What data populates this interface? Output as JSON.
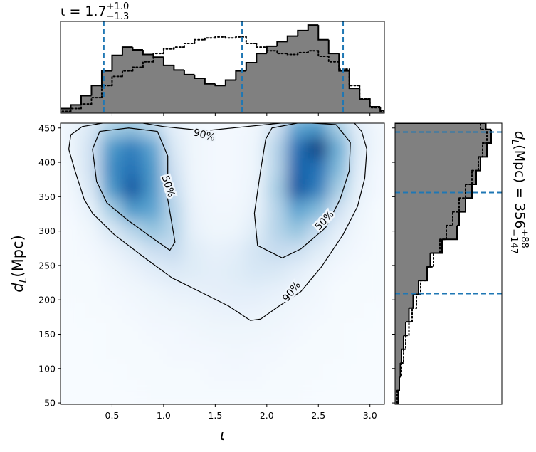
{
  "chart_data": [
    {
      "type": "histogram",
      "orientation": "vertical",
      "title": {
        "text": "ι = 1.7",
        "upper": "+1.0",
        "lower": "−1.3"
      },
      "bins": [
        0,
        0.1,
        0.2,
        0.3,
        0.4,
        0.5,
        0.6,
        0.7,
        0.8,
        0.9,
        1.0,
        1.1,
        1.2,
        1.3,
        1.4,
        1.5,
        1.6,
        1.7,
        1.8,
        1.9,
        2.0,
        2.1,
        2.2,
        2.3,
        2.4,
        2.5,
        2.6,
        2.7,
        2.8,
        2.9,
        3.0,
        3.1,
        3.14
      ],
      "series": [
        {
          "color": "#000000",
          "fill": "#808080",
          "linestyle": "solid",
          "values": [
            0.05,
            0.09,
            0.19,
            0.3,
            0.46,
            0.63,
            0.72,
            0.69,
            0.64,
            0.61,
            0.52,
            0.47,
            0.42,
            0.38,
            0.32,
            0.3,
            0.36,
            0.46,
            0.55,
            0.65,
            0.73,
            0.78,
            0.84,
            0.9,
            0.96,
            0.8,
            0.65,
            0.46,
            0.27,
            0.15,
            0.07,
            0.03
          ]
        },
        {
          "color": "#000000",
          "linestyle": "dotted",
          "values": [
            0.02,
            0.05,
            0.1,
            0.17,
            0.3,
            0.4,
            0.46,
            0.5,
            0.56,
            0.65,
            0.7,
            0.72,
            0.76,
            0.8,
            0.82,
            0.83,
            0.82,
            0.83,
            0.76,
            0.72,
            0.68,
            0.65,
            0.64,
            0.66,
            0.68,
            0.62,
            0.56,
            0.48,
            0.3,
            0.16,
            0.06,
            0.02
          ]
        }
      ],
      "quantiles": [
        0.42,
        1.76,
        2.74
      ],
      "quantile_color": "#1f77b4",
      "xlim": [
        0,
        3.14
      ],
      "xticks": [
        0.5,
        1,
        1.5,
        2,
        2.5,
        3
      ],
      "ylim": [
        0,
        1
      ]
    },
    {
      "type": "heatmap",
      "xlabel": "ι",
      "ylabel": {
        "symbol": "d",
        "symbol_sub": "L",
        "text": " (Mpc)"
      },
      "xlim": [
        0,
        3.14
      ],
      "xticks": [
        0.5,
        {
          "value": 1,
          "label": "1.0"
        },
        1.5,
        {
          "value": 2,
          "label": "2.0"
        },
        2.5,
        {
          "value": 3,
          "label": "3.0"
        }
      ],
      "ylim": [
        48,
        457
      ],
      "yticks": [
        50,
        100,
        150,
        200,
        250,
        300,
        350,
        400,
        450
      ],
      "colormap": [
        "#f7fbff",
        "#deebf7",
        "#c6dbef",
        "#9ecae1",
        "#6baed6",
        "#4292c6",
        "#2171b5",
        "#08519c",
        "#08306b"
      ],
      "heatmap": {
        "x": [
          0.1,
          0.3,
          0.5,
          0.7,
          0.9,
          1.1,
          1.3,
          1.5,
          1.7,
          1.9,
          2.1,
          2.3,
          2.5,
          2.7,
          2.9,
          3.1
        ],
        "y": [
          450,
          420,
          390,
          360,
          330,
          300,
          270,
          240,
          210,
          180,
          150,
          120,
          90,
          60
        ],
        "z": [
          [
            0.05,
            0.15,
            0.35,
            0.4,
            0.3,
            0.1,
            0.04,
            0.02,
            0.02,
            0.04,
            0.2,
            0.55,
            0.6,
            0.35,
            0.1,
            0.03
          ],
          [
            0.05,
            0.2,
            0.6,
            0.7,
            0.55,
            0.15,
            0.04,
            0.02,
            0.02,
            0.05,
            0.3,
            0.75,
            0.95,
            0.5,
            0.12,
            0.03
          ],
          [
            0.04,
            0.2,
            0.65,
            0.75,
            0.6,
            0.2,
            0.04,
            0.02,
            0.02,
            0.05,
            0.3,
            0.8,
            0.75,
            0.45,
            0.1,
            0.02
          ],
          [
            0.03,
            0.15,
            0.6,
            0.85,
            0.6,
            0.25,
            0.05,
            0.02,
            0.02,
            0.06,
            0.35,
            0.85,
            0.7,
            0.35,
            0.08,
            0.02
          ],
          [
            0.02,
            0.08,
            0.35,
            0.6,
            0.55,
            0.3,
            0.06,
            0.03,
            0.03,
            0.08,
            0.3,
            0.55,
            0.45,
            0.2,
            0.05,
            0.01
          ],
          [
            0.01,
            0.04,
            0.15,
            0.3,
            0.4,
            0.3,
            0.08,
            0.04,
            0.05,
            0.12,
            0.3,
            0.4,
            0.25,
            0.1,
            0.03,
            0.01
          ],
          [
            0.01,
            0.02,
            0.06,
            0.12,
            0.22,
            0.25,
            0.12,
            0.08,
            0.1,
            0.18,
            0.25,
            0.22,
            0.12,
            0.05,
            0.02,
            0.01
          ],
          [
            0.01,
            0.01,
            0.03,
            0.06,
            0.1,
            0.14,
            0.12,
            0.1,
            0.12,
            0.16,
            0.15,
            0.1,
            0.05,
            0.02,
            0.01,
            0.01
          ],
          [
            0.01,
            0.01,
            0.02,
            0.03,
            0.05,
            0.07,
            0.08,
            0.09,
            0.1,
            0.1,
            0.08,
            0.05,
            0.03,
            0.01,
            0.01,
            0.01
          ],
          [
            0,
            0.01,
            0.01,
            0.02,
            0.03,
            0.04,
            0.05,
            0.06,
            0.07,
            0.06,
            0.05,
            0.03,
            0.02,
            0.01,
            0.01,
            0
          ],
          [
            0,
            0,
            0.01,
            0.01,
            0.02,
            0.02,
            0.03,
            0.04,
            0.04,
            0.04,
            0.03,
            0.02,
            0.01,
            0.01,
            0,
            0
          ],
          [
            0,
            0,
            0.01,
            0.01,
            0.01,
            0.02,
            0.02,
            0.02,
            0.03,
            0.02,
            0.02,
            0.01,
            0.01,
            0.01,
            0,
            0
          ],
          [
            0,
            0,
            0,
            0.01,
            0.01,
            0.01,
            0.01,
            0.02,
            0.02,
            0.02,
            0.01,
            0.01,
            0.01,
            0,
            0,
            0
          ],
          [
            0,
            0,
            0,
            0,
            0.01,
            0.01,
            0.01,
            0.01,
            0.01,
            0.01,
            0.01,
            0.01,
            0,
            0,
            0,
            0
          ]
        ]
      },
      "contours": [
        {
          "label": "90%",
          "color": "#000000",
          "x": [
            0.21,
            0.1,
            0.08,
            0.14,
            0.23,
            0.31,
            0.52,
            0.8,
            1.08,
            1.35,
            1.63,
            1.84,
            1.94,
            2.12,
            2.33,
            2.53,
            2.74,
            2.88,
            2.95,
            2.97,
            2.92,
            2.85,
            2.6,
            2.2,
            1.8,
            1.4,
            1.0,
            0.6
          ],
          "y": [
            452,
            440,
            419,
            388,
            346,
            326,
            295,
            263,
            232,
            212,
            191,
            170,
            172,
            191,
            212,
            248,
            295,
            336,
            377,
            419,
            445,
            457,
            466,
            458,
            452,
            446,
            452,
            462
          ]
        },
        {
          "label": "50%",
          "color": "#000000",
          "x": [
            0.38,
            0.66,
            0.94,
            1.04,
            1.04,
            1.11,
            1.06,
            0.9,
            0.66,
            0.45,
            0.35,
            0.31
          ],
          "y": [
            445,
            450,
            445,
            409,
            346,
            284,
            272,
            289,
            315,
            341,
            372,
            419
          ]
        },
        {
          "label": "50%",
          "color": "#000000",
          "x": [
            2.05,
            2.33,
            2.67,
            2.81,
            2.8,
            2.71,
            2.57,
            2.33,
            2.15,
            1.91,
            1.88,
            1.94,
            1.99
          ],
          "y": [
            450,
            458,
            455,
            429,
            388,
            346,
            305,
            274,
            261,
            279,
            326,
            388,
            434
          ]
        }
      ]
    },
    {
      "type": "histogram",
      "orientation": "horizontal",
      "label": {
        "symbol": "d",
        "symbol_sub": "L",
        "text": " (Mpc) = 356",
        "upper": "+88",
        "lower": "−147"
      },
      "bins": [
        48,
        68,
        88,
        108,
        128,
        148,
        168,
        188,
        208,
        228,
        248,
        268,
        288,
        308,
        328,
        348,
        368,
        388,
        408,
        428,
        448,
        457
      ],
      "series": [
        {
          "color": "#000000",
          "fill": "#808080",
          "linestyle": "solid",
          "values": [
            0.03,
            0.04,
            0.05,
            0.06,
            0.08,
            0.1,
            0.13,
            0.17,
            0.22,
            0.3,
            0.33,
            0.44,
            0.58,
            0.6,
            0.66,
            0.72,
            0.76,
            0.8,
            0.86,
            0.9,
            0.85
          ]
        },
        {
          "color": "#000000",
          "linestyle": "dotted",
          "values": [
            0.02,
            0.04,
            0.06,
            0.08,
            0.1,
            0.13,
            0.16,
            0.2,
            0.24,
            0.3,
            0.36,
            0.42,
            0.48,
            0.54,
            0.6,
            0.66,
            0.72,
            0.78,
            0.82,
            0.86,
            0.8
          ]
        }
      ],
      "quantiles": [
        209,
        356,
        444
      ],
      "quantile_color": "#1f77b4",
      "ylim": [
        48,
        457
      ],
      "yticks": [
        50,
        100,
        150,
        200,
        250,
        300,
        350,
        400,
        450
      ],
      "xlim": [
        0,
        1
      ]
    }
  ]
}
